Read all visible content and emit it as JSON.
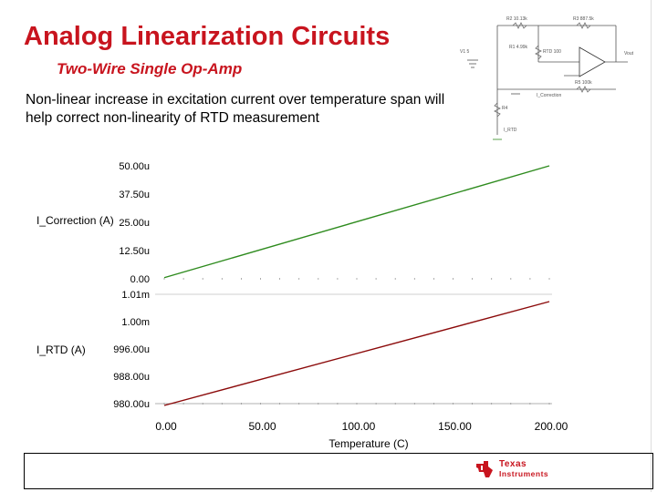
{
  "slide": {
    "title": "Analog Linearization Circuits",
    "subtitle": "Two-Wire Single Op-Amp",
    "description": "Non-linear increase in excitation current over temperature span will help correct non-linearity of RTD measurement"
  },
  "schematic": {
    "labels": [
      "R2 10.13k",
      "R3 887.5k",
      "Vout",
      "V1 5",
      "R1 4.99k",
      "RTD 100",
      "I_Correction",
      "R5 100k",
      "R4",
      "I_RTD"
    ]
  },
  "chart_data": [
    {
      "type": "line",
      "title": "",
      "ylabel": "I_Correction (A)",
      "xlabel": "Temperature (C)",
      "x": [
        0,
        200
      ],
      "values": [
        5e-07,
        5e-05
      ],
      "ylim": [
        0,
        5e-05
      ],
      "yticks": [
        "50.00u",
        "37.50u",
        "25.00u",
        "12.50u",
        "0.00"
      ],
      "color": "#2e8b1e"
    },
    {
      "type": "line",
      "title": "",
      "ylabel": "I_RTD (A)",
      "xlabel": "Temperature (C)",
      "x": [
        0,
        200
      ],
      "values": [
        0.0009795,
        0.001008
      ],
      "ylim": [
        0.00098,
        0.00101
      ],
      "yticks": [
        "1.01m",
        "1.00m",
        "996.00u",
        "988.00u",
        "980.00u"
      ],
      "xticks": [
        "0.00",
        "50.00",
        "100.00",
        "150.00",
        "200.00"
      ],
      "color": "#8b0a0a"
    }
  ],
  "footer": {
    "logo_line1": "Texas",
    "logo_line2": "Instruments"
  },
  "colors": {
    "accent": "#c8141e"
  }
}
